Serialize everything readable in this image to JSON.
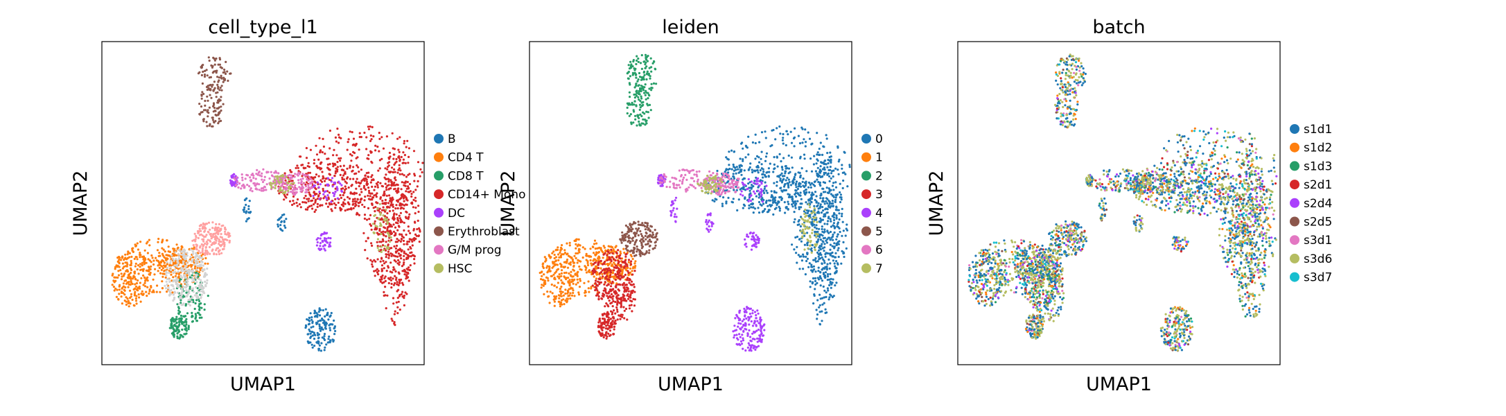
{
  "chart_data": [
    {
      "type": "scatter",
      "title": "cell_type_l1",
      "xlabel": "UMAP1",
      "ylabel": "UMAP2",
      "ticks": "none",
      "legend_position": "right",
      "categories": [
        {
          "label": "B",
          "color": "#1f77b4"
        },
        {
          "label": "CD4 T",
          "color": "#ff7f0e"
        },
        {
          "label": "CD8 T",
          "color": "#279e68"
        },
        {
          "label": "CD14+ Mono",
          "color": "#d62728"
        },
        {
          "label": "DC",
          "color": "#aa40fc"
        },
        {
          "label": "Erythroblast",
          "color": "#8c564b"
        },
        {
          "label": "G/M prog",
          "color": "#e377c2"
        },
        {
          "label": "HSC",
          "color": "#b5bd61"
        }
      ]
    },
    {
      "type": "scatter",
      "title": "leiden",
      "xlabel": "UMAP1",
      "ylabel": "UMAP2",
      "ticks": "none",
      "legend_position": "right",
      "categories": [
        {
          "label": "0",
          "color": "#1f77b4"
        },
        {
          "label": "1",
          "color": "#ff7f0e"
        },
        {
          "label": "2",
          "color": "#279e68"
        },
        {
          "label": "3",
          "color": "#d62728"
        },
        {
          "label": "4",
          "color": "#aa40fc"
        },
        {
          "label": "5",
          "color": "#8c564b"
        },
        {
          "label": "6",
          "color": "#e377c2"
        },
        {
          "label": "7",
          "color": "#b5bd61"
        }
      ]
    },
    {
      "type": "scatter",
      "title": "batch",
      "xlabel": "UMAP1",
      "ylabel": "UMAP2",
      "ticks": "none",
      "legend_position": "right",
      "categories": [
        {
          "label": "s1d1",
          "color": "#1f77b4"
        },
        {
          "label": "s1d2",
          "color": "#ff7f0e"
        },
        {
          "label": "s1d3",
          "color": "#279e68"
        },
        {
          "label": "s2d1",
          "color": "#d62728"
        },
        {
          "label": "s2d4",
          "color": "#aa40fc"
        },
        {
          "label": "s2d5",
          "color": "#8c564b"
        },
        {
          "label": "s3d1",
          "color": "#e377c2"
        },
        {
          "label": "s3d6",
          "color": "#b5bd61"
        },
        {
          "label": "s3d7",
          "color": "#17becf"
        }
      ]
    }
  ]
}
